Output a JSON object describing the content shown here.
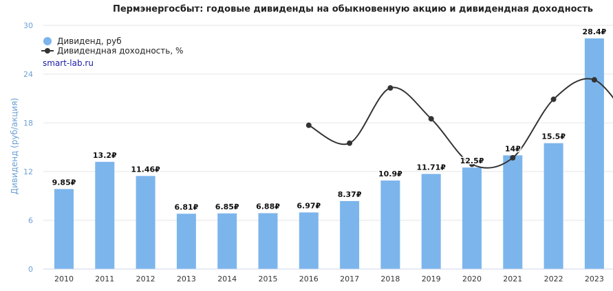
{
  "chart_data": {
    "type": "bar",
    "title": "Пермэнергосбыт: годовые дивиденды на обыкновенную акцию и дивидендная доходность",
    "ylabel": "Дивиденд (руб/акция)",
    "xlabel": "",
    "ylim": [
      0,
      30
    ],
    "yticks": [
      "0",
      "6",
      "12",
      "18",
      "24",
      "30"
    ],
    "grid": true,
    "legend_position": "top-left",
    "categories": [
      "2010",
      "2011",
      "2012",
      "2013",
      "2014",
      "2015",
      "2016",
      "2017",
      "2018",
      "2019",
      "2020",
      "2021",
      "2022",
      "2023"
    ],
    "series": [
      {
        "name": "Дивиденд, руб",
        "type": "bar",
        "color": "#7cb5ec",
        "values": [
          9.85,
          13.2,
          11.46,
          6.81,
          6.85,
          6.88,
          6.97,
          8.37,
          10.9,
          11.71,
          12.5,
          14,
          15.5,
          28.4
        ],
        "labels": [
          "9.85₽",
          "13.2₽",
          "11.46₽",
          "6.81₽",
          "6.85₽",
          "6.88₽",
          "6.97₽",
          "8.37₽",
          "10.9₽",
          "11.71₽",
          "12.5₽",
          "14₽",
          "15.5₽",
          "28.4₽"
        ]
      },
      {
        "name": "Дивидендная доходность, %",
        "type": "spline",
        "color": "#333333",
        "values": [
          null,
          null,
          null,
          null,
          null,
          null,
          17.7,
          15.5,
          22.3,
          18.5,
          12.9,
          13.7,
          20.9,
          23.3
        ]
      }
    ]
  },
  "source_label": "smart-lab.ru",
  "colors": {
    "bar": "#7cb5ec",
    "line": "#333333",
    "grid": "#e6e6e6",
    "axis_text": "#6b9fd4"
  }
}
